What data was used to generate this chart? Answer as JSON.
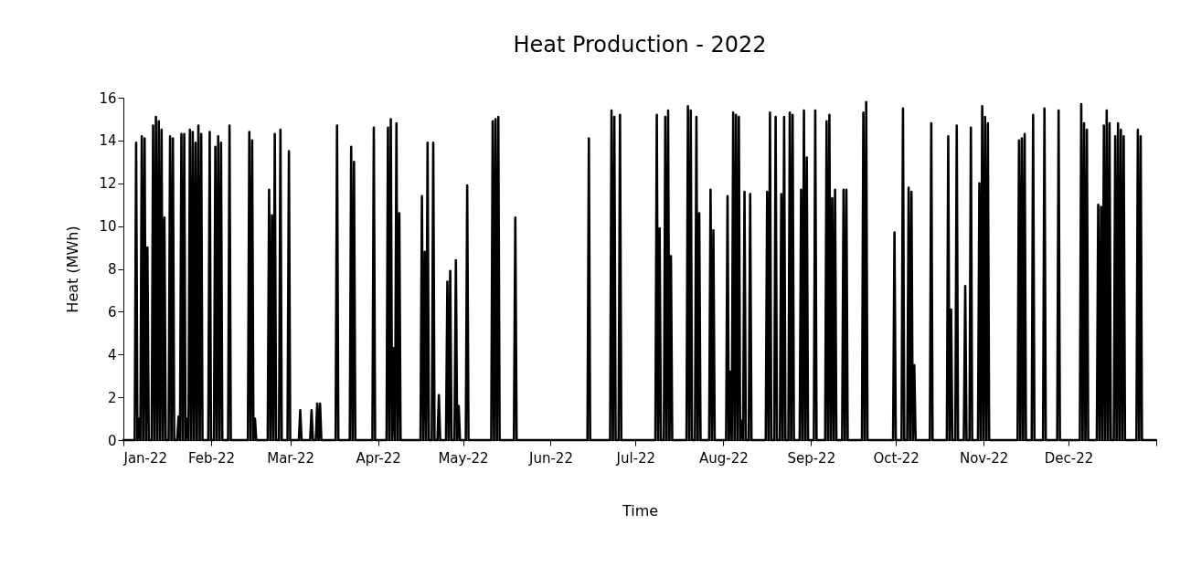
{
  "chart_data": {
    "type": "line",
    "title": "Heat Production - 2022",
    "xlabel": "Time",
    "ylabel": "Heat (MWh)",
    "xlim": [
      "2022-01-01",
      "2023-01-01"
    ],
    "xticks": [
      {
        "value": "2022-01-01",
        "label": "Jan-22"
      },
      {
        "value": "2022-02-01",
        "label": "Feb-22"
      },
      {
        "value": "2022-03-01",
        "label": "Mar-22"
      },
      {
        "value": "2022-04-01",
        "label": "Apr-22"
      },
      {
        "value": "2022-05-01",
        "label": "May-22"
      },
      {
        "value": "2022-06-01",
        "label": "Jun-22"
      },
      {
        "value": "2022-07-01",
        "label": "Jul-22"
      },
      {
        "value": "2022-08-01",
        "label": "Aug-22"
      },
      {
        "value": "2022-09-01",
        "label": "Sep-22"
      },
      {
        "value": "2022-10-01",
        "label": "Oct-22"
      },
      {
        "value": "2022-11-01",
        "label": "Nov-22"
      },
      {
        "value": "2022-12-01",
        "label": "Dec-22"
      },
      {
        "value": "2023-01-01",
        "label": null
      }
    ],
    "ylim": [
      0,
      16
    ],
    "yticks": [
      0,
      2,
      4,
      6,
      8,
      10,
      12,
      14,
      16
    ],
    "series": [
      {
        "color": "#000000",
        "line_style": "solid",
        "x": [
          "2022-01-01T00:00",
          "2022-01-05T00:00",
          "2022-01-05T12:00",
          "2022-01-05T23:00",
          "2022-01-06T00:00",
          "2022-01-06T12:00",
          "2022-01-06T23:00",
          "2022-01-07T00:00",
          "2022-01-07T12:00",
          "2022-01-07T23:00",
          "2022-01-08T00:00",
          "2022-01-08T12:00",
          "2022-01-08T23:00",
          "2022-01-09T00:00",
          "2022-01-09T12:00",
          "2022-01-09T23:00",
          "2022-01-11T00:00",
          "2022-01-11T12:00",
          "2022-01-11T23:00",
          "2022-01-12T00:00",
          "2022-01-12T12:00",
          "2022-01-12T23:00",
          "2022-01-13T00:00",
          "2022-01-13T12:00",
          "2022-01-13T23:00",
          "2022-01-14T00:00",
          "2022-01-14T12:00",
          "2022-01-14T23:00",
          "2022-01-15T00:00",
          "2022-01-15T12:00",
          "2022-01-15T23:00",
          "2022-01-17T00:00",
          "2022-01-17T12:00",
          "2022-01-17T23:00",
          "2022-01-18T00:00",
          "2022-01-18T12:00",
          "2022-01-18T23:00",
          "2022-01-20T00:00",
          "2022-01-20T12:00",
          "2022-01-20T23:00",
          "2022-01-21T00:00",
          "2022-01-21T12:00",
          "2022-01-21T23:00",
          "2022-01-22T00:00",
          "2022-01-22T12:00",
          "2022-01-22T23:00",
          "2022-01-23T00:00",
          "2022-01-23T12:00",
          "2022-01-23T23:00",
          "2022-01-24T00:00",
          "2022-01-24T12:00",
          "2022-01-24T23:00",
          "2022-01-25T00:00",
          "2022-01-25T12:00",
          "2022-01-25T23:00",
          "2022-01-26T00:00",
          "2022-01-26T12:00",
          "2022-01-26T23:00",
          "2022-01-27T00:00",
          "2022-01-27T12:00",
          "2022-01-27T23:00",
          "2022-01-28T00:00",
          "2022-01-28T12:00",
          "2022-01-28T23:00",
          "2022-01-31T00:00",
          "2022-01-31T12:00",
          "2022-01-31T23:00",
          "2022-02-02T00:00",
          "2022-02-02T12:00",
          "2022-02-02T23:00",
          "2022-02-03T00:00",
          "2022-02-03T12:00",
          "2022-02-03T23:00",
          "2022-02-04T00:00",
          "2022-02-04T12:00",
          "2022-02-04T23:00",
          "2022-02-07T00:00",
          "2022-02-07T12:00",
          "2022-02-07T23:00",
          "2022-02-14T00:00",
          "2022-02-14T12:00",
          "2022-02-14T23:00",
          "2022-02-15T00:00",
          "2022-02-15T12:00",
          "2022-02-15T23:00",
          "2022-02-16T00:00",
          "2022-02-16T12:00",
          "2022-02-16T23:00",
          "2022-02-21T00:00",
          "2022-02-21T12:00",
          "2022-02-21T23:00",
          "2022-02-22T00:00",
          "2022-02-22T12:00",
          "2022-02-22T23:00",
          "2022-02-23T00:00",
          "2022-02-23T12:00",
          "2022-02-23T23:00",
          "2022-02-25T00:00",
          "2022-02-25T12:00",
          "2022-02-25T23:00",
          "2022-02-28T00:00",
          "2022-02-28T12:00",
          "2022-02-28T23:00",
          "2022-03-04T00:00",
          "2022-03-04T12:00",
          "2022-03-04T23:00",
          "2022-03-08T00:00",
          "2022-03-08T12:00",
          "2022-03-08T23:00",
          "2022-03-10T00:00",
          "2022-03-10T12:00",
          "2022-03-10T23:00",
          "2022-03-11T00:00",
          "2022-03-11T12:00",
          "2022-03-11T23:00",
          "2022-03-17T00:00",
          "2022-03-17T12:00",
          "2022-03-17T23:00",
          "2022-03-22T00:00",
          "2022-03-22T12:00",
          "2022-03-22T23:00",
          "2022-03-23T00:00",
          "2022-03-23T12:00",
          "2022-03-23T23:00",
          "2022-03-30T00:00",
          "2022-03-30T12:00",
          "2022-03-30T23:00",
          "2022-04-04T00:00",
          "2022-04-04T12:00",
          "2022-04-04T23:00",
          "2022-04-05T00:00",
          "2022-04-05T12:00",
          "2022-04-05T23:00",
          "2022-04-06T00:00",
          "2022-04-06T12:00",
          "2022-04-06T23:00",
          "2022-04-07T00:00",
          "2022-04-07T12:00",
          "2022-04-07T23:00",
          "2022-04-08T00:00",
          "2022-04-08T12:00",
          "2022-04-08T23:00",
          "2022-04-16T00:00",
          "2022-04-16T12:00",
          "2022-04-16T23:00",
          "2022-04-17T00:00",
          "2022-04-17T12:00",
          "2022-04-17T23:00",
          "2022-04-18T00:00",
          "2022-04-18T12:00",
          "2022-04-18T23:00",
          "2022-04-20T00:00",
          "2022-04-20T12:00",
          "2022-04-20T23:00",
          "2022-04-22T00:00",
          "2022-04-22T12:00",
          "2022-04-22T23:00",
          "2022-04-25T00:00",
          "2022-04-25T12:00",
          "2022-04-25T23:00",
          "2022-04-26T00:00",
          "2022-04-26T12:00",
          "2022-04-26T23:00",
          "2022-04-28T00:00",
          "2022-04-28T12:00",
          "2022-04-28T23:00",
          "2022-04-29T00:00",
          "2022-04-29T12:00",
          "2022-04-29T23:00",
          "2022-05-02T00:00",
          "2022-05-02T12:00",
          "2022-05-02T23:00",
          "2022-05-11T00:00",
          "2022-05-11T12:00",
          "2022-05-11T23:00",
          "2022-05-12T00:00",
          "2022-05-12T12:00",
          "2022-05-12T23:00",
          "2022-05-13T00:00",
          "2022-05-13T12:00",
          "2022-05-13T23:00",
          "2022-05-19T00:00",
          "2022-05-19T12:00",
          "2022-05-19T23:00",
          "2022-06-14T00:00",
          "2022-06-14T12:00",
          "2022-06-14T23:00",
          "2022-06-22T00:00",
          "2022-06-22T12:00",
          "2022-06-22T23:00",
          "2022-06-23T00:00",
          "2022-06-23T12:00",
          "2022-06-23T23:00",
          "2022-06-25T00:00",
          "2022-06-25T12:00",
          "2022-06-25T23:00",
          "2022-07-08T00:00",
          "2022-07-08T12:00",
          "2022-07-08T23:00",
          "2022-07-09T00:00",
          "2022-07-09T12:00",
          "2022-07-09T23:00",
          "2022-07-11T00:00",
          "2022-07-11T12:00",
          "2022-07-11T23:00",
          "2022-07-12T00:00",
          "2022-07-12T12:00",
          "2022-07-12T23:00",
          "2022-07-13T00:00",
          "2022-07-13T12:00",
          "2022-07-13T23:00",
          "2022-07-19T00:00",
          "2022-07-19T12:00",
          "2022-07-19T23:00",
          "2022-07-20T00:00",
          "2022-07-20T12:00",
          "2022-07-20T23:00",
          "2022-07-22T00:00",
          "2022-07-22T12:00",
          "2022-07-22T23:00",
          "2022-07-23T00:00",
          "2022-07-23T12:00",
          "2022-07-23T23:00",
          "2022-07-27T00:00",
          "2022-07-27T12:00",
          "2022-07-27T23:00",
          "2022-07-28T00:00",
          "2022-07-28T12:00",
          "2022-07-28T23:00",
          "2022-08-02T00:00",
          "2022-08-02T12:00",
          "2022-08-02T23:00",
          "2022-08-03T00:00",
          "2022-08-03T12:00",
          "2022-08-03T23:00",
          "2022-08-04T00:00",
          "2022-08-04T12:00",
          "2022-08-04T23:00",
          "2022-08-05T00:00",
          "2022-08-05T12:00",
          "2022-08-05T23:00",
          "2022-08-06T00:00",
          "2022-08-06T12:00",
          "2022-08-06T23:00",
          "2022-08-07T00:00",
          "2022-08-07T12:00",
          "2022-08-07T23:00",
          "2022-08-08T00:00",
          "2022-08-08T12:00",
          "2022-08-08T23:00",
          "2022-08-10T00:00",
          "2022-08-10T12:00",
          "2022-08-10T23:00",
          "2022-08-16T00:00",
          "2022-08-16T12:00",
          "2022-08-16T23:00",
          "2022-08-17T00:00",
          "2022-08-17T12:00",
          "2022-08-17T23:00",
          "2022-08-19T00:00",
          "2022-08-19T12:00",
          "2022-08-19T23:00",
          "2022-08-21T00:00",
          "2022-08-21T12:00",
          "2022-08-21T23:00",
          "2022-08-22T00:00",
          "2022-08-22T12:00",
          "2022-08-22T23:00",
          "2022-08-24T00:00",
          "2022-08-24T12:00",
          "2022-08-24T23:00",
          "2022-08-25T00:00",
          "2022-08-25T12:00",
          "2022-08-25T23:00",
          "2022-08-28T00:00",
          "2022-08-28T12:00",
          "2022-08-28T23:00",
          "2022-08-29T00:00",
          "2022-08-29T12:00",
          "2022-08-29T23:00",
          "2022-08-30T00:00",
          "2022-08-30T12:00",
          "2022-08-30T23:00",
          "2022-09-02T00:00",
          "2022-09-02T12:00",
          "2022-09-02T23:00",
          "2022-09-06T00:00",
          "2022-09-06T12:00",
          "2022-09-06T23:00",
          "2022-09-07T00:00",
          "2022-09-07T12:00",
          "2022-09-07T23:00",
          "2022-09-08T00:00",
          "2022-09-08T12:00",
          "2022-09-08T23:00",
          "2022-09-09T00:00",
          "2022-09-09T12:00",
          "2022-09-09T23:00",
          "2022-09-12T00:00",
          "2022-09-12T12:00",
          "2022-09-12T23:00",
          "2022-09-13T00:00",
          "2022-09-13T12:00",
          "2022-09-13T23:00",
          "2022-09-19T00:00",
          "2022-09-19T12:00",
          "2022-09-19T23:00",
          "2022-09-20T00:00",
          "2022-09-20T12:00",
          "2022-09-20T23:00",
          "2022-09-30T00:00",
          "2022-09-30T12:00",
          "2022-09-30T23:00",
          "2022-10-03T00:00",
          "2022-10-03T12:00",
          "2022-10-03T23:00",
          "2022-10-05T00:00",
          "2022-10-05T12:00",
          "2022-10-05T23:00",
          "2022-10-06T00:00",
          "2022-10-06T12:00",
          "2022-10-06T23:00",
          "2022-10-07T00:00",
          "2022-10-07T12:00",
          "2022-10-07T23:00",
          "2022-10-13T00:00",
          "2022-10-13T12:00",
          "2022-10-13T23:00",
          "2022-10-19T00:00",
          "2022-10-19T12:00",
          "2022-10-19T23:00",
          "2022-10-20T00:00",
          "2022-10-20T12:00",
          "2022-10-20T23:00",
          "2022-10-22T00:00",
          "2022-10-22T12:00",
          "2022-10-22T23:00",
          "2022-10-25T00:00",
          "2022-10-25T12:00",
          "2022-10-25T23:00",
          "2022-10-27T00:00",
          "2022-10-27T12:00",
          "2022-10-27T23:00",
          "2022-10-30T00:00",
          "2022-10-30T12:00",
          "2022-10-30T23:00",
          "2022-10-31T00:00",
          "2022-10-31T12:00",
          "2022-10-31T23:00",
          "2022-11-01T00:00",
          "2022-11-01T12:00",
          "2022-11-01T23:00",
          "2022-11-02T00:00",
          "2022-11-02T12:00",
          "2022-11-02T23:00",
          "2022-11-13T00:00",
          "2022-11-13T12:00",
          "2022-11-13T23:00",
          "2022-11-14T00:00",
          "2022-11-14T12:00",
          "2022-11-14T23:00",
          "2022-11-15T00:00",
          "2022-11-15T12:00",
          "2022-11-15T23:00",
          "2022-11-18T00:00",
          "2022-11-18T12:00",
          "2022-11-18T23:00",
          "2022-11-22T00:00",
          "2022-11-22T12:00",
          "2022-11-22T23:00",
          "2022-11-27T00:00",
          "2022-11-27T12:00",
          "2022-11-27T23:00",
          "2022-12-05T00:00",
          "2022-12-05T12:00",
          "2022-12-05T23:00",
          "2022-12-06T00:00",
          "2022-12-06T12:00",
          "2022-12-06T23:00",
          "2022-12-07T00:00",
          "2022-12-07T12:00",
          "2022-12-07T23:00",
          "2022-12-11T00:00",
          "2022-12-11T12:00",
          "2022-12-11T23:00",
          "2022-12-12T00:00",
          "2022-12-12T12:00",
          "2022-12-12T23:00",
          "2022-12-13T00:00",
          "2022-12-13T12:00",
          "2022-12-13T23:00",
          "2022-12-14T00:00",
          "2022-12-14T12:00",
          "2022-12-14T23:00",
          "2022-12-15T00:00",
          "2022-12-15T12:00",
          "2022-12-15T23:00",
          "2022-12-17T00:00",
          "2022-12-17T12:00",
          "2022-12-17T23:00",
          "2022-12-18T00:00",
          "2022-12-18T12:00",
          "2022-12-18T23:00",
          "2022-12-19T00:00",
          "2022-12-19T12:00",
          "2022-12-19T23:00",
          "2022-12-20T00:00",
          "2022-12-20T12:00",
          "2022-12-20T23:00",
          "2022-12-25T00:00",
          "2022-12-25T12:00",
          "2022-12-25T23:00",
          "2022-12-26T00:00",
          "2022-12-26T12:00",
          "2022-12-26T23:00",
          "2022-12-31T23:00"
        ],
        "values": [
          0,
          0,
          13.9,
          0,
          0,
          1.0,
          0,
          0,
          14.2,
          0,
          0,
          14.1,
          0,
          0,
          9.0,
          0,
          0,
          14.7,
          0,
          0,
          15.1,
          0,
          0,
          14.9,
          0,
          0,
          14.5,
          0,
          0,
          10.4,
          0,
          0,
          14.2,
          0,
          0,
          14.1,
          0,
          0,
          1.1,
          0,
          0,
          14.3,
          0,
          0,
          14.3,
          0,
          0,
          1.0,
          0,
          0,
          14.5,
          0,
          0,
          14.4,
          0,
          0,
          13.9,
          0,
          0,
          14.7,
          0,
          0,
          14.3,
          0,
          0,
          14.4,
          0,
          0,
          13.7,
          0,
          0,
          14.2,
          0,
          0,
          13.9,
          0,
          0,
          14.7,
          0,
          0,
          14.4,
          0,
          0,
          14.0,
          0,
          0,
          1.0,
          0,
          0,
          11.7,
          0,
          0,
          10.5,
          0,
          0,
          14.3,
          0,
          0,
          14.5,
          0,
          0,
          13.5,
          0,
          0,
          1.4,
          0,
          0,
          1.4,
          0,
          0,
          1.7,
          0,
          0,
          1.7,
          0,
          0,
          14.7,
          0,
          0,
          13.7,
          0,
          0,
          13.0,
          0,
          0,
          14.6,
          0,
          0,
          14.6,
          0,
          0,
          15.0,
          0,
          0,
          4.3,
          0,
          0,
          14.8,
          0,
          0,
          10.6,
          0,
          0,
          11.4,
          0,
          0,
          8.8,
          0,
          0,
          13.9,
          0,
          0,
          13.9,
          0,
          0,
          2.1,
          0,
          0,
          7.4,
          0,
          0,
          7.9,
          0,
          0,
          8.4,
          0,
          0,
          1.6,
          0,
          0,
          11.9,
          0,
          0,
          14.9,
          0,
          0,
          15.0,
          0,
          0,
          15.1,
          0,
          0,
          10.4,
          0,
          0,
          14.1,
          0,
          0,
          15.4,
          0,
          0,
          15.1,
          0,
          0,
          15.2,
          0,
          0,
          15.2,
          0,
          0,
          9.9,
          0,
          0,
          15.1,
          0,
          0,
          15.4,
          0,
          0,
          8.6,
          0,
          0,
          15.6,
          0,
          0,
          15.4,
          0,
          0,
          15.1,
          0,
          0,
          10.6,
          0,
          0,
          11.7,
          0,
          0,
          9.8,
          0,
          0,
          11.4,
          0,
          0,
          3.2,
          0,
          0,
          15.3,
          0,
          0,
          15.2,
          0,
          0,
          15.1,
          0,
          0,
          0.9,
          0,
          0,
          11.6,
          0,
          0,
          11.5,
          0,
          0,
          11.6,
          0,
          0,
          15.3,
          0,
          0,
          15.1,
          0,
          0,
          11.5,
          0,
          0,
          15.1,
          0,
          0,
          15.3,
          0,
          0,
          15.2,
          0,
          0,
          11.7,
          0,
          0,
          15.4,
          0,
          0,
          13.2,
          0,
          0,
          15.4,
          0,
          0,
          14.9,
          0,
          0,
          15.2,
          0,
          0,
          11.3,
          0,
          0,
          11.7,
          0,
          0,
          11.7,
          0,
          0,
          11.7,
          0,
          0,
          15.3,
          0,
          0,
          15.8,
          0,
          0,
          9.7,
          0,
          0,
          15.5,
          0,
          0,
          11.8,
          0,
          0,
          11.6,
          0,
          0,
          3.5,
          0,
          0,
          14.8,
          0,
          0,
          14.2,
          0,
          0,
          6.1,
          0,
          0,
          14.7,
          0,
          0,
          7.2,
          0,
          0,
          14.6,
          0,
          0,
          12.0,
          0,
          0,
          15.6,
          0,
          0,
          15.1,
          0,
          0,
          14.8,
          0,
          0,
          14.0,
          0,
          0,
          14.1,
          0,
          0,
          14.3,
          0,
          0,
          15.2,
          0,
          0,
          15.5,
          0,
          0,
          15.4,
          0,
          0,
          15.7,
          0,
          0,
          14.8,
          0,
          0,
          14.5,
          0,
          0,
          11.0,
          0,
          0,
          10.9,
          0,
          0,
          14.7,
          0,
          0,
          15.4,
          0,
          0,
          14.8,
          0,
          0,
          14.2,
          0,
          0,
          14.8,
          0,
          0,
          14.5,
          0,
          0,
          14.2,
          0,
          0,
          14.5,
          0,
          0,
          14.2,
          0,
          0
        ]
      }
    ]
  }
}
